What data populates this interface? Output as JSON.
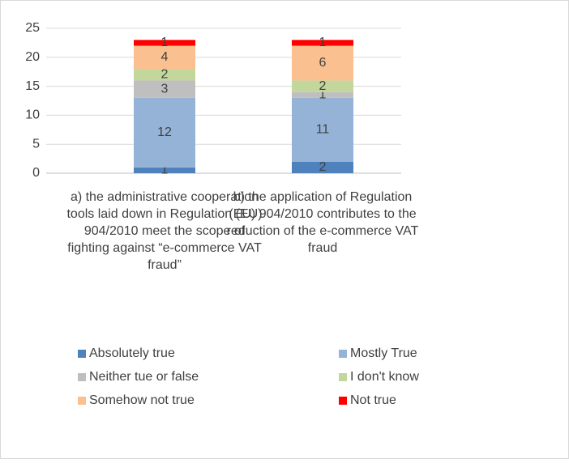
{
  "chart_data": {
    "type": "stacked_bar",
    "categories": [
      "a) the administrative cooperation tools laid down in Regulation (EU) 904/2010 meet the scope of fighting against “e-commerce VAT fraud”",
      "b) the application of Regulation (EU) 904/2010 contributes to the reduction of the e-commerce VAT fraud"
    ],
    "series": [
      {
        "name": "Absolutely true",
        "color": "#4f81bd",
        "values": [
          1,
          2
        ]
      },
      {
        "name": "Mostly True",
        "color": "#95b3d7",
        "values": [
          12,
          11
        ]
      },
      {
        "name": "Neither tue or false",
        "color": "#bfbfbf",
        "values": [
          3,
          1
        ]
      },
      {
        "name": "I don't know",
        "color": "#c3d69b",
        "values": [
          2,
          2
        ]
      },
      {
        "name": "Somehow not true",
        "color": "#fac090",
        "values": [
          4,
          6
        ]
      },
      {
        "name": "Not true",
        "color": "#ff0000",
        "values": [
          1,
          1
        ]
      }
    ],
    "ylim": [
      0,
      25
    ],
    "yticks": [
      0,
      5,
      10,
      15,
      20,
      25
    ],
    "grid": true,
    "legend": "bottom"
  }
}
